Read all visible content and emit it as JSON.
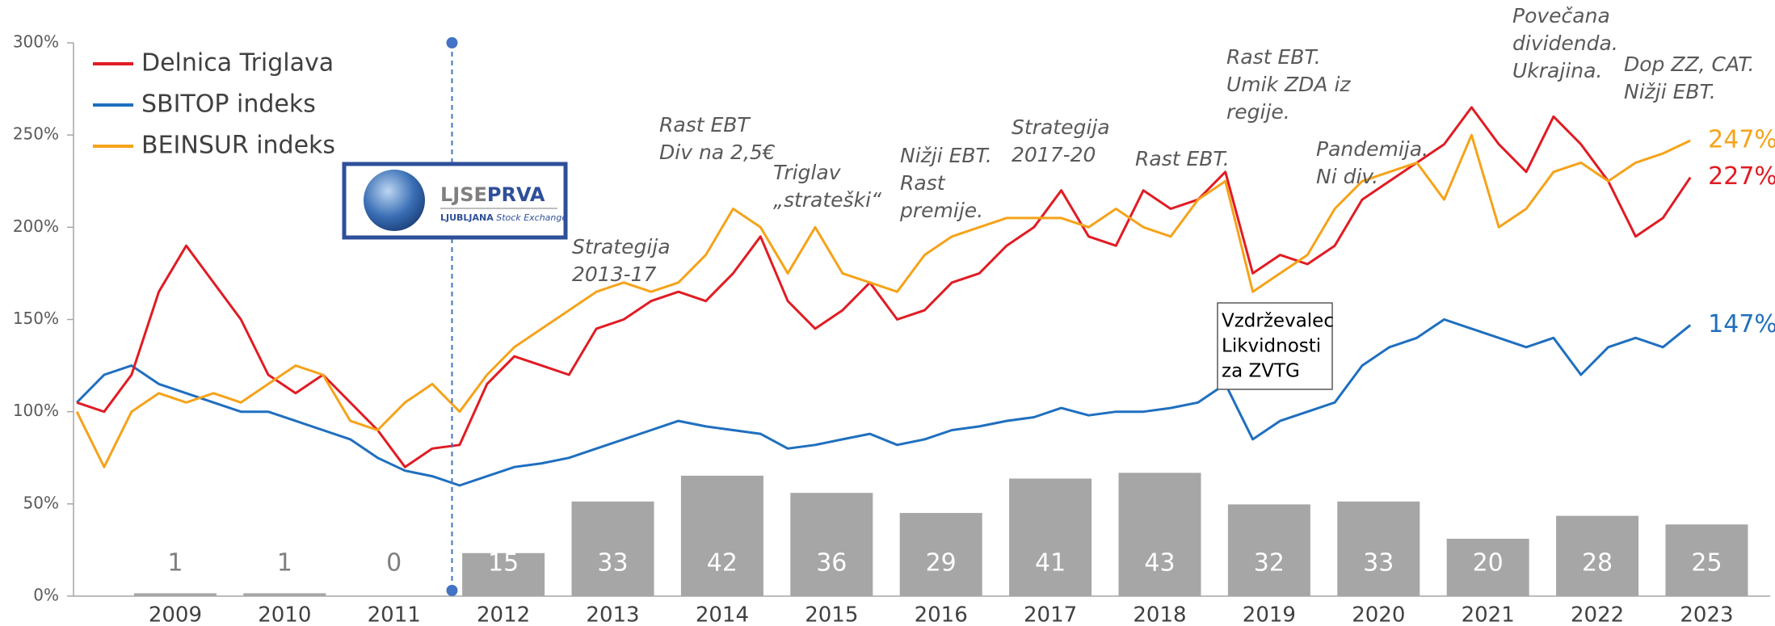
{
  "chart_data": {
    "type": "line",
    "x": [
      2008.6,
      2008.85,
      2009.1,
      2009.35,
      2009.6,
      2009.85,
      2010.1,
      2010.35,
      2010.6,
      2010.85,
      2011.1,
      2011.35,
      2011.6,
      2011.85,
      2012.1,
      2012.35,
      2012.6,
      2012.85,
      2013.1,
      2013.35,
      2013.6,
      2013.85,
      2014.1,
      2014.35,
      2014.6,
      2014.85,
      2015.1,
      2015.35,
      2015.6,
      2015.85,
      2016.1,
      2016.35,
      2016.6,
      2016.85,
      2017.1,
      2017.35,
      2017.6,
      2017.85,
      2018.1,
      2018.35,
      2018.6,
      2018.85,
      2019.1,
      2019.35,
      2019.6,
      2019.85,
      2020.1,
      2020.35,
      2020.6,
      2020.85,
      2021.1,
      2021.35,
      2021.6,
      2021.85,
      2022.1,
      2022.35,
      2022.6,
      2022.85,
      2023.1,
      2023.35
    ],
    "xlim": [
      2008.57,
      2024.08
    ],
    "ylim": [
      0,
      300
    ],
    "yticks": [
      {
        "value": 0,
        "label": "0%"
      },
      {
        "value": 50,
        "label": "50%"
      },
      {
        "value": 100,
        "label": "100%"
      },
      {
        "value": 150,
        "label": "150%"
      },
      {
        "value": 200,
        "label": "200%"
      },
      {
        "value": 250,
        "label": "250%"
      },
      {
        "value": 300,
        "label": "300%"
      }
    ],
    "legend": "upper left",
    "series": [
      {
        "name": "Delnica Triglava",
        "color": "#e01c24",
        "end_label": "227%",
        "values": [
          105,
          100,
          120,
          165,
          190,
          170,
          150,
          120,
          110,
          120,
          105,
          90,
          70,
          80,
          82,
          115,
          130,
          125,
          120,
          145,
          150,
          160,
          165,
          160,
          175,
          195,
          160,
          145,
          155,
          170,
          150,
          155,
          170,
          175,
          190,
          200,
          220,
          195,
          190,
          220,
          210,
          215,
          230,
          175,
          185,
          180,
          190,
          215,
          225,
          235,
          245,
          265,
          245,
          230,
          260,
          245,
          225,
          195,
          205,
          227
        ]
      },
      {
        "name": "SBITOP indeks",
        "color": "#1f6fbf",
        "end_label": "147%",
        "values": [
          105,
          120,
          125,
          115,
          110,
          105,
          100,
          100,
          95,
          90,
          85,
          75,
          68,
          65,
          60,
          65,
          70,
          72,
          75,
          80,
          85,
          90,
          95,
          92,
          90,
          88,
          80,
          82,
          85,
          88,
          82,
          85,
          90,
          92,
          95,
          97,
          102,
          98,
          100,
          100,
          102,
          105,
          115,
          85,
          95,
          100,
          105,
          125,
          135,
          140,
          150,
          145,
          140,
          135,
          140,
          120,
          135,
          140,
          135,
          147
        ]
      },
      {
        "name": "BEINSUR indeks",
        "color": "#f5a31a",
        "end_label": "247%",
        "values": [
          100,
          70,
          100,
          110,
          105,
          110,
          105,
          115,
          125,
          120,
          95,
          90,
          105,
          115,
          100,
          120,
          135,
          145,
          155,
          165,
          170,
          165,
          170,
          185,
          210,
          200,
          175,
          200,
          175,
          170,
          165,
          185,
          195,
          200,
          205,
          205,
          205,
          200,
          210,
          200,
          195,
          215,
          225,
          165,
          175,
          185,
          210,
          225,
          230,
          235,
          215,
          250,
          200,
          210,
          230,
          235,
          225,
          235,
          240,
          247
        ]
      }
    ],
    "bars": {
      "type": "bar",
      "axis": "y2",
      "color": "#a6a6a6",
      "categories": [
        "2009",
        "2010",
        "2011",
        "2012",
        "2013",
        "2014",
        "2015",
        "2016",
        "2017",
        "2018",
        "2019",
        "2020",
        "2021",
        "2022",
        "2023"
      ],
      "values": [
        1,
        1,
        0,
        15,
        33,
        42,
        36,
        29,
        41,
        43,
        32,
        33,
        20,
        28,
        25
      ]
    },
    "y2lim": [
      0,
      193
    ],
    "marker_x": 2012.03,
    "annotations": [
      {
        "lines": [
          "Strategija",
          "2013-17"
        ]
      },
      {
        "lines": [
          "Rast EBT",
          "Div na 2,5€"
        ]
      },
      {
        "lines": [
          "Triglav",
          "„strateški“"
        ]
      },
      {
        "lines": [
          "Nižji EBT.",
          "Rast",
          "premije."
        ]
      },
      {
        "lines": [
          "Strategija",
          "2017-20"
        ]
      },
      {
        "lines": [
          "Rast EBT."
        ]
      },
      {
        "lines": [
          "Rast EBT.",
          "Umik ZDA iz",
          "regije."
        ]
      },
      {
        "lines": [
          "Pandemija.",
          "Ni div."
        ]
      },
      {
        "lines": [
          "Povečana",
          "dividenda.",
          "Ukrajina."
        ]
      },
      {
        "lines": [
          "Dop ZZ, CAT.",
          "Nižji EBT."
        ]
      }
    ],
    "box": {
      "lines": [
        "Vzdrževalec",
        "Likvidnosti",
        "za ZVTG"
      ]
    },
    "logo": {
      "name_a": "LJSE",
      "name_b": "PRVA",
      "sub_a": "LJUBLJANA",
      "sub_b": "Stock Exchange"
    }
  }
}
